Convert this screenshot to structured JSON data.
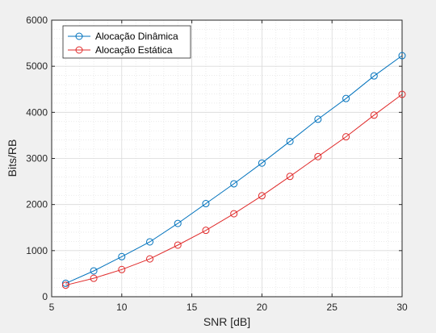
{
  "chart_data": {
    "type": "line",
    "title": "",
    "xlabel": "SNR [dB]",
    "ylabel": "Bits/RB",
    "xlim": [
      5,
      30
    ],
    "ylim": [
      0,
      6000
    ],
    "xticks": [
      5,
      10,
      15,
      20,
      25,
      30
    ],
    "yticks": [
      0,
      1000,
      2000,
      3000,
      4000,
      5000,
      6000
    ],
    "grid": true,
    "minor_grid": true,
    "legend_position": "top-left",
    "marker": "circle",
    "x": [
      6,
      8,
      10,
      12,
      14,
      16,
      18,
      20,
      22,
      24,
      26,
      28,
      30
    ],
    "series": [
      {
        "name": "Alocação Dinâmica",
        "color": "#0072bd",
        "values": [
          290,
          560,
          870,
          1190,
          1590,
          2020,
          2450,
          2900,
          3370,
          3850,
          4300,
          4790,
          5230
        ]
      },
      {
        "name": "Alocação Estática",
        "color": "#e02a2a",
        "values": [
          250,
          400,
          590,
          820,
          1120,
          1440,
          1800,
          2190,
          2610,
          3040,
          3470,
          3940,
          4390
        ]
      }
    ]
  },
  "colors": {
    "figure_background": "#f0f0f0",
    "axes_background": "#ffffff",
    "grid": "#dcdcdc",
    "axis": "#262626"
  }
}
